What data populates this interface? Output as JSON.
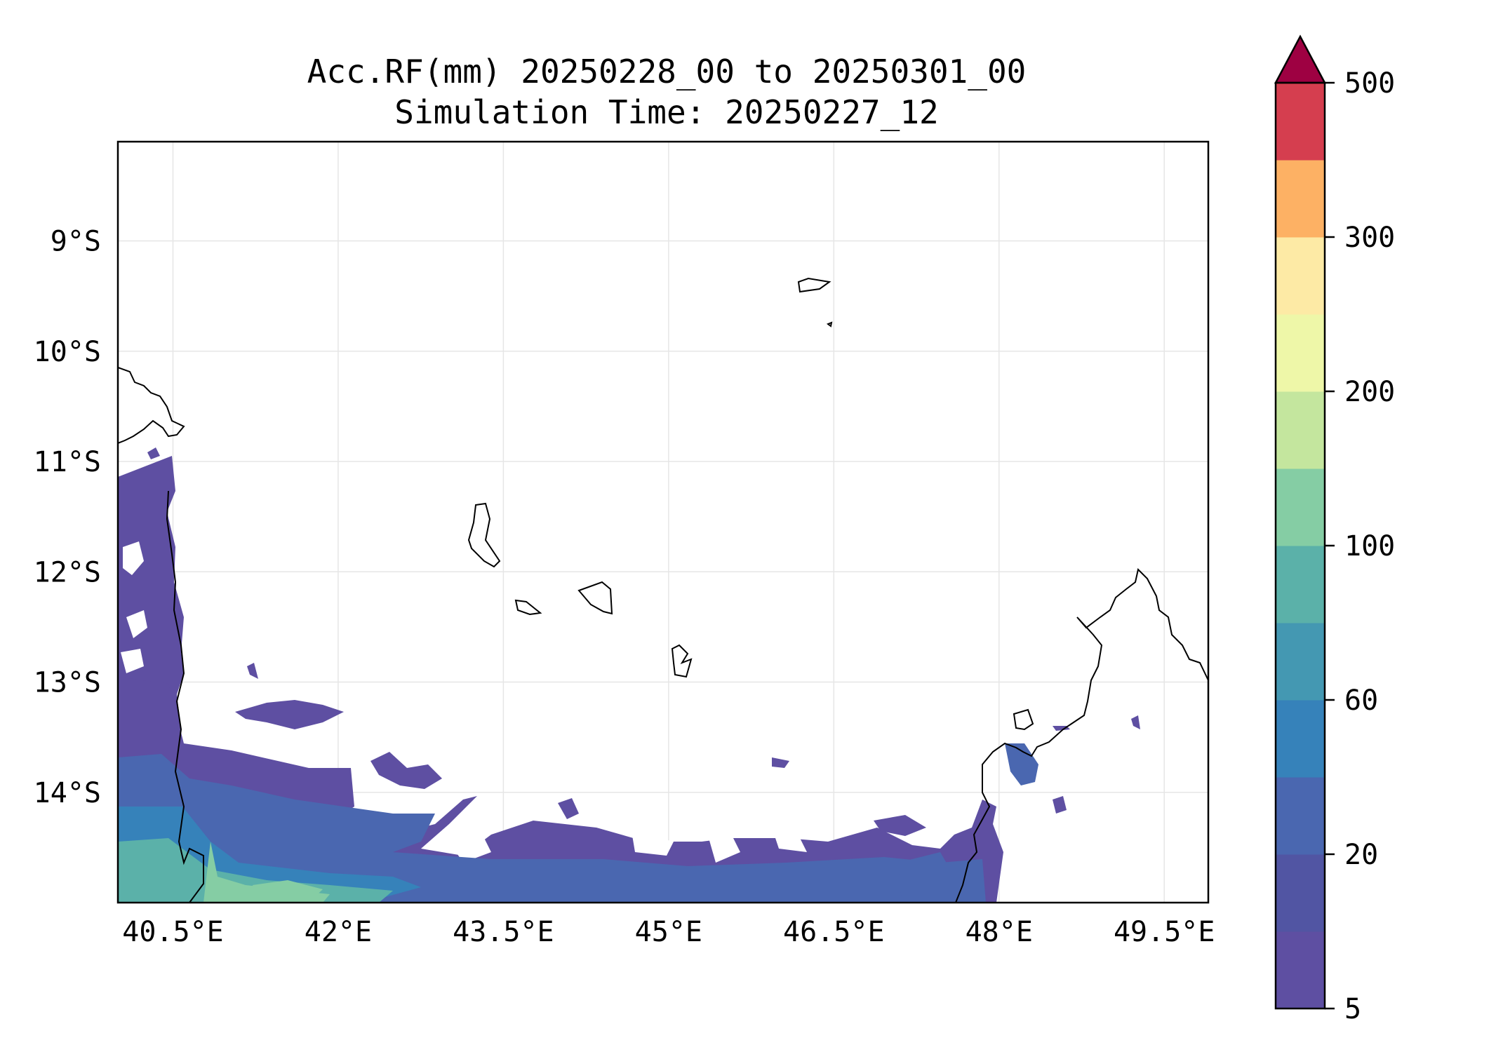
{
  "title": {
    "line1": "Acc.RF(mm) 20250228_00 to 20250301_00",
    "line2": "Simulation Time: 20250227_12"
  },
  "map": {
    "lon_range": [
      40.0,
      49.9
    ],
    "lat_range": [
      -15.0,
      -8.1
    ],
    "lon_ticks": [
      {
        "value": 40.5,
        "label": "40.5°E"
      },
      {
        "value": 42.0,
        "label": "42°E"
      },
      {
        "value": 43.5,
        "label": "43.5°E"
      },
      {
        "value": 45.0,
        "label": "45°E"
      },
      {
        "value": 46.5,
        "label": "46.5°E"
      },
      {
        "value": 48.0,
        "label": "48°E"
      },
      {
        "value": 49.5,
        "label": "49.5°E"
      }
    ],
    "lat_ticks": [
      {
        "value": -9,
        "label": "9°S"
      },
      {
        "value": -10,
        "label": "10°S"
      },
      {
        "value": -11,
        "label": "11°S"
      },
      {
        "value": -12,
        "label": "12°S"
      },
      {
        "value": -13,
        "label": "13°S"
      },
      {
        "value": -14,
        "label": "14°S"
      }
    ],
    "gridlines": true
  },
  "colorbar": {
    "orientation": "vertical",
    "extend": "max",
    "extend_color": "#9e0142",
    "levels": [
      5,
      10,
      20,
      40,
      60,
      80,
      100,
      150,
      200,
      250,
      300,
      400,
      500
    ],
    "colors": [
      "#5e4fa2",
      "#5155a3",
      "#4a67b0",
      "#3682ba",
      "#4498b2",
      "#5bb1a9",
      "#85cda4",
      "#c4e69e",
      "#eef7a8",
      "#fdeaa5",
      "#fdb164",
      "#d53e4f"
    ],
    "tick_labels": [
      {
        "value": 5,
        "label": "5"
      },
      {
        "value": 20,
        "label": "20"
      },
      {
        "value": 60,
        "label": "60"
      },
      {
        "value": 100,
        "label": "100"
      },
      {
        "value": 200,
        "label": "200"
      },
      {
        "value": 300,
        "label": "300"
      },
      {
        "value": 500,
        "label": "500"
      }
    ]
  }
}
